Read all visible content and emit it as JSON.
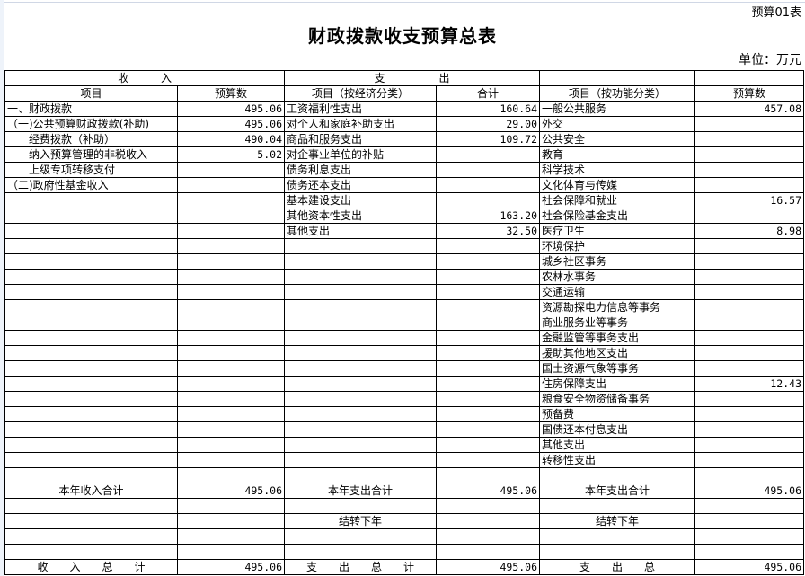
{
  "form_code": "预算01表",
  "title": "财政拨款收支预算总表",
  "unit": "单位：万元",
  "header1": {
    "income": "收　　　入",
    "expense": "支　　　　　出"
  },
  "header2": [
    "项目",
    "预算数",
    "项目（按经济分类）",
    "合计",
    "项目（按功能分类）",
    "预算数"
  ],
  "rows": [
    [
      "一、财政拨款",
      "495.06",
      "工资福利性支出",
      "160.64",
      "一般公共服务",
      "457.08"
    ],
    [
      "（一)公共预算财政拨款(补助)",
      "495.06",
      "对个人和家庭补助支出",
      "29.00",
      "外交",
      ""
    ],
    [
      "　　经费拨款（补助）",
      "490.04",
      "商品和服务支出",
      "109.72",
      "公共安全",
      ""
    ],
    [
      "　　纳入预算管理的非税收入",
      "5.02",
      "对企事业单位的补贴",
      "",
      "教育",
      ""
    ],
    [
      "　　上级专项转移支付",
      "",
      "债务利息支出",
      "",
      "科学技术",
      ""
    ],
    [
      "（二)政府性基金收入",
      "",
      "债务还本支出",
      "",
      "文化体育与传媒",
      ""
    ],
    [
      "",
      "",
      "基本建设支出",
      "",
      "社会保障和就业",
      "16.57"
    ],
    [
      "",
      "",
      "其他资本性支出",
      "163.20",
      "社会保险基金支出",
      ""
    ],
    [
      "",
      "",
      "其他支出",
      "32.50",
      "医疗卫生",
      "8.98"
    ],
    [
      "",
      "",
      "",
      "",
      "环境保护",
      ""
    ],
    [
      "",
      "",
      "",
      "",
      "城乡社区事务",
      ""
    ],
    [
      "",
      "",
      "",
      "",
      "农林水事务",
      ""
    ],
    [
      "",
      "",
      "",
      "",
      "交通运输",
      ""
    ],
    [
      "",
      "",
      "",
      "",
      "资源勘探电力信息等事务",
      ""
    ],
    [
      "",
      "",
      "",
      "",
      "商业服务业等事务",
      ""
    ],
    [
      "",
      "",
      "",
      "",
      "金融监管等事务支出",
      ""
    ],
    [
      "",
      "",
      "",
      "",
      "援助其他地区支出",
      ""
    ],
    [
      "",
      "",
      "",
      "",
      "国土资源气象等事务",
      ""
    ],
    [
      "",
      "",
      "",
      "",
      "住房保障支出",
      "12.43"
    ],
    [
      "",
      "",
      "",
      "",
      "粮食安全物资储备事务",
      ""
    ],
    [
      "",
      "",
      "",
      "",
      "预备费",
      ""
    ],
    [
      "",
      "",
      "",
      "",
      "国债还本付息支出",
      ""
    ],
    [
      "",
      "",
      "",
      "",
      "其他支出",
      ""
    ],
    [
      "",
      "",
      "",
      "",
      "转移性支出",
      ""
    ],
    [
      "",
      "",
      "",
      "",
      "",
      ""
    ]
  ],
  "summary": [
    [
      "本年收入合计",
      "495.06",
      "本年支出合计",
      "495.06",
      "本年支出合计",
      "495.06"
    ],
    [
      "",
      "",
      "",
      "",
      "",
      ""
    ],
    [
      "",
      "",
      "结转下年",
      "",
      "结转下年",
      ""
    ],
    [
      "",
      "",
      "",
      "",
      "",
      ""
    ],
    [
      "",
      "",
      "",
      "",
      "",
      ""
    ],
    [
      "收　　入　　总　　计",
      "495.06",
      "支　　出　　总　　计",
      "495.06",
      "支　　出　　总",
      "495.06"
    ]
  ]
}
